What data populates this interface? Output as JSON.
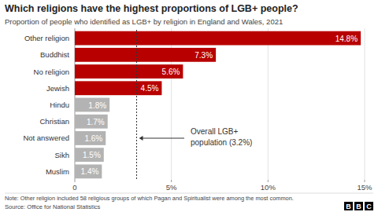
{
  "chart_data": {
    "type": "bar",
    "orientation": "horizontal",
    "title": "Which religions have the highest proportions of LGB+ people?",
    "subtitle": "Proportion of people who identified as LGB+ by religion in England and Wales, 2021",
    "categories": [
      "Other religion",
      "Buddhist",
      "No religion",
      "Jewish",
      "Hindu",
      "Christian",
      "Not answered",
      "Sikh",
      "Muslim"
    ],
    "values": [
      14.8,
      7.3,
      5.6,
      4.5,
      1.8,
      1.7,
      1.6,
      1.5,
      1.4
    ],
    "value_labels": [
      "14.8%",
      "7.3%",
      "5.6%",
      "4.5%",
      "1.8%",
      "1.7%",
      "1.6%",
      "1.5%",
      "1.4%"
    ],
    "colors": [
      "#b80000",
      "#b80000",
      "#b80000",
      "#b80000",
      "#b3b3b3",
      "#b3b3b3",
      "#b3b3b3",
      "#b3b3b3",
      "#b3b3b3"
    ],
    "data_labels": true,
    "xlim": [
      0,
      15
    ],
    "xticks": [
      0,
      {
        "value": 5,
        "label": "5%"
      },
      {
        "value": 10,
        "label": "10%"
      },
      {
        "value": 15,
        "label": "15%"
      }
    ],
    "grid": true,
    "annotations": [
      {
        "text_lines": [
          "Overall LGB+",
          "population (3.2%)"
        ],
        "value": 3.2
      }
    ],
    "note": "Note: Other religion included 58 religious groups of which Pagan and Spiritualist were among the most common.",
    "source": "Source: Office for National Statistics",
    "logo": "BBC"
  }
}
